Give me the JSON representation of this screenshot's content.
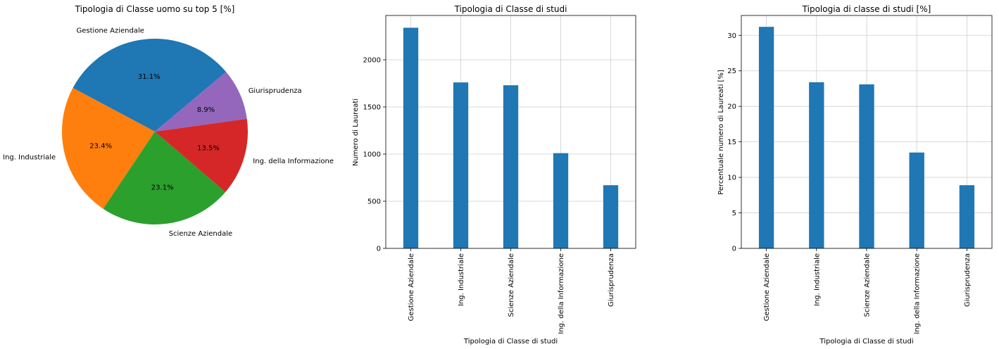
{
  "chart_data": [
    {
      "type": "pie",
      "title": "Tipologia di Classe uomo su top 5 [%]",
      "categories": [
        "Gestione Aziendale",
        "Ing. Industriale",
        "Scienze Aziendale",
        "Ing. della Informazione",
        "Giurisprudenza"
      ],
      "values": [
        31.1,
        23.4,
        23.1,
        13.5,
        8.9
      ],
      "value_labels": [
        "31.1%",
        "23.4%",
        "23.1%",
        "13.5%",
        "8.9%"
      ],
      "colors": [
        "#1f77b4",
        "#ff7f0e",
        "#2ca02c",
        "#d62728",
        "#9467bd"
      ]
    },
    {
      "type": "bar",
      "title": "Tipologia di Classe di studi",
      "xlabel": "Tipologia di Classe di studi",
      "ylabel": "Numero di Laureati",
      "categories": [
        "Gestione Aziendale",
        "Ing. Industriale",
        "Scienze Aziendale",
        "Ing. della Informazione",
        "Giurisprudenza"
      ],
      "values": [
        2340,
        1760,
        1730,
        1010,
        670
      ],
      "ylim": [
        0,
        2470
      ],
      "yticks": [
        0,
        500,
        1000,
        1500,
        2000
      ],
      "ytick_labels": [
        "0",
        "500",
        "1000",
        "1500",
        "2000"
      ],
      "grid": true,
      "color": "#1f77b4"
    },
    {
      "type": "bar",
      "title": "Tipologia di classe di studi [%]",
      "xlabel": "Tipologia di Classe di studi",
      "ylabel": "Percentuale numero di Laureati [%]",
      "categories": [
        "Gestione Aziendale",
        "Ing. Industriale",
        "Scienze Aziendale",
        "Ing. della Informazione",
        "Giurisprudenza"
      ],
      "values": [
        31.2,
        23.4,
        23.1,
        13.5,
        8.9
      ],
      "ylim": [
        0,
        32.8
      ],
      "yticks": [
        0,
        5,
        10,
        15,
        20,
        25,
        30
      ],
      "ytick_labels": [
        "0",
        "5",
        "10",
        "15",
        "20",
        "25",
        "30"
      ],
      "grid": true,
      "color": "#1f77b4"
    }
  ]
}
